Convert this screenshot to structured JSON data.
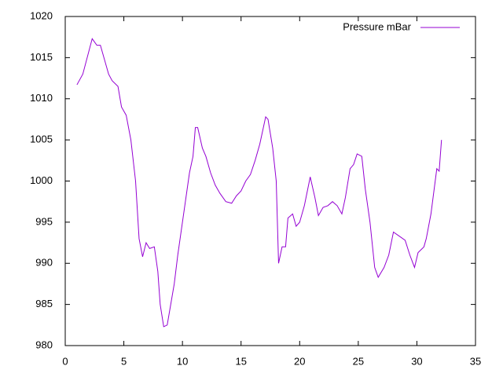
{
  "chart_data": {
    "type": "line",
    "xlim": [
      0,
      35
    ],
    "xticks": [
      0,
      5,
      10,
      15,
      20,
      25,
      30,
      35
    ],
    "ylim": [
      980,
      1020
    ],
    "yticks": [
      980,
      985,
      990,
      995,
      1000,
      1005,
      1010,
      1015,
      1020
    ],
    "grid": false,
    "legend": "top right",
    "x": [
      1,
      1.5,
      2.3,
      2.7,
      3,
      3.3,
      3.7,
      4,
      4.5,
      4.8,
      5.2,
      5.6,
      6,
      6.3,
      6.6,
      6.9,
      7.2,
      7.6,
      7.9,
      8.1,
      8.4,
      8.7,
      9,
      9.3,
      9.6,
      9.9,
      10.2,
      10.6,
      10.9,
      11.1,
      11.3,
      11.7,
      12,
      12.4,
      12.8,
      13.2,
      13.7,
      14.2,
      14.6,
      15,
      15.4,
      15.8,
      16.2,
      16.6,
      17.1,
      17.3,
      17.7,
      18,
      18.2,
      18.5,
      18.8,
      19,
      19.4,
      19.7,
      20,
      20.4,
      20.9,
      21.3,
      21.6,
      22,
      22.4,
      22.8,
      23.2,
      23.6,
      23.9,
      24.3,
      24.6,
      24.9,
      25.3,
      25.6,
      26,
      26.4,
      26.7,
      27.2,
      27.6,
      28,
      28.5,
      29,
      29.4,
      29.8,
      30.1,
      30.6,
      30.8,
      31.2,
      31.7,
      31.9,
      32.1
    ],
    "series": [
      {
        "name": "Pressure mBar",
        "color": "#9400d3",
        "values": [
          1011.7,
          1013,
          1017.3,
          1016.5,
          1016.5,
          1015,
          1013,
          1012.2,
          1011.5,
          1009,
          1008,
          1005,
          1000,
          993,
          990.8,
          992.5,
          991.8,
          992,
          989,
          985,
          982.3,
          982.5,
          985,
          987.5,
          991,
          994,
          997,
          1001,
          1003,
          1006.5,
          1006.5,
          1004,
          1003,
          1001,
          999.5,
          998.5,
          997.5,
          997.3,
          998.2,
          998.8,
          1000,
          1000.8,
          1002.5,
          1004.5,
          1007.8,
          1007.5,
          1004,
          1000,
          990,
          992,
          992,
          995.5,
          996,
          994.5,
          995,
          997,
          1000.5,
          998,
          995.8,
          996.8,
          997,
          997.5,
          997,
          996,
          998,
          1001.5,
          1002,
          1003.3,
          1003,
          999,
          995,
          989.5,
          988.3,
          989.5,
          991,
          993.8,
          993.3,
          992.8,
          991,
          989.5,
          991.3,
          992,
          993,
          996,
          1001.5,
          1001.2,
          1005
        ]
      }
    ]
  }
}
